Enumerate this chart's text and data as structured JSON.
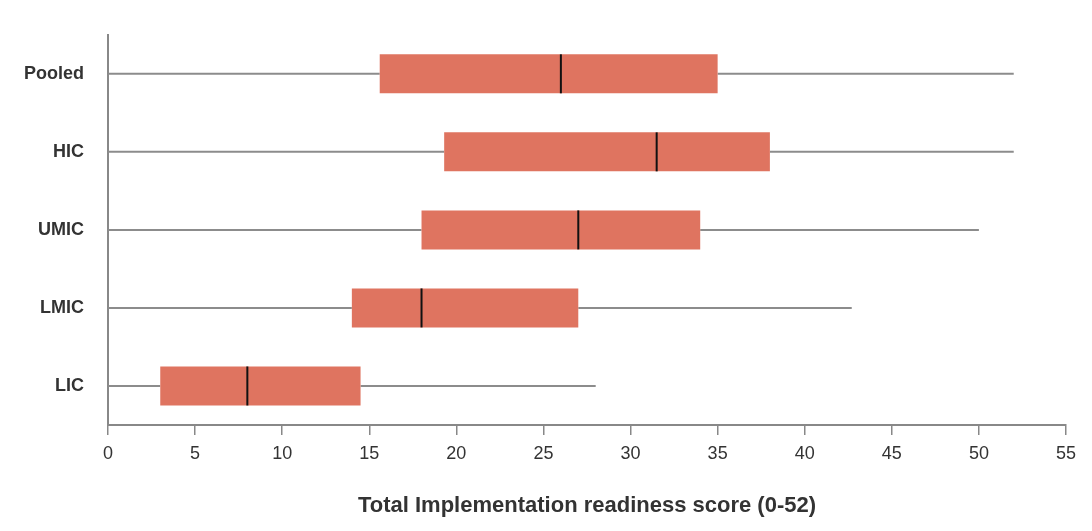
{
  "chart_data": {
    "type": "box",
    "orientation": "horizontal",
    "xlabel": "Total Implementation readiness score (0-52)",
    "categories": [
      "Pooled",
      "HIC",
      "UMIC",
      "LMIC",
      "LIC"
    ],
    "color": "#df7460",
    "boxes": [
      {
        "low": 0,
        "q1": 15.6,
        "median": 26,
        "q3": 35,
        "high": 52
      },
      {
        "low": 0,
        "q1": 19.3,
        "median": 31.5,
        "q3": 38,
        "high": 52
      },
      {
        "low": 0,
        "q1": 18,
        "median": 27,
        "q3": 34,
        "high": 50
      },
      {
        "low": 0,
        "q1": 14,
        "median": 18,
        "q3": 27,
        "high": 42.7
      },
      {
        "low": 0,
        "q1": 3,
        "median": 8,
        "q3": 14.5,
        "high": 28
      }
    ],
    "xlim": [
      0,
      55
    ],
    "xticks": [
      0,
      5,
      10,
      15,
      20,
      25,
      30,
      35,
      40,
      45,
      50,
      55
    ],
    "grid": false
  }
}
